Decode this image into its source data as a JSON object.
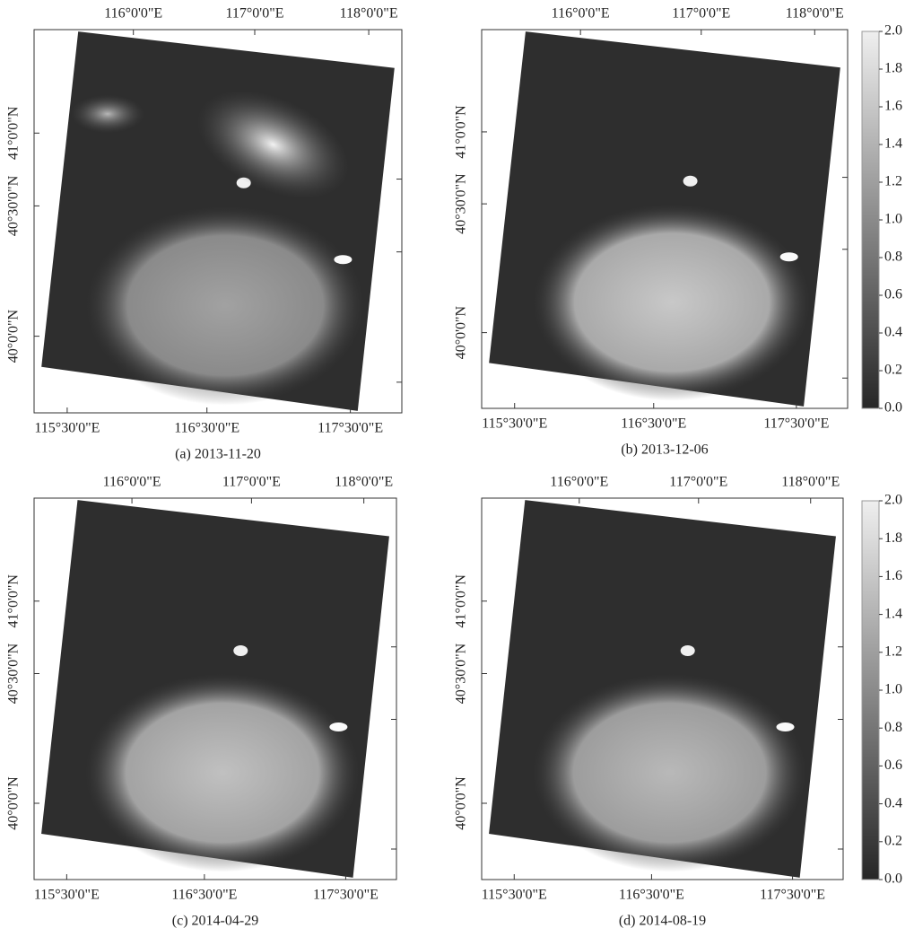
{
  "panels": [
    {
      "top_labels": [
        "116°0'0\"E",
        "117°0'0\"E",
        "118°0'0\"E"
      ],
      "bottom_labels": [
        "115°30'0\"E",
        "116°30'0\"E",
        "117°30'0\"E"
      ],
      "left_labels": [
        "41°0'0\"N",
        "40°30'0\"N",
        "40°0'0\"N"
      ],
      "caption": "(a) 2013-11-20"
    },
    {
      "top_labels": [
        "116°0'0\"E",
        "117°0'0\"E",
        "118°0'0\"E"
      ],
      "bottom_labels": [
        "115°30'0\"E",
        "116°30'0\"E",
        "117°30'0\"E"
      ],
      "left_labels": [
        "41°0'0\"N",
        "40°30'0\"N",
        "40°0'0\"N"
      ],
      "caption": "(b) 2013-12-06"
    },
    {
      "top_labels": [
        "116°0'0\"E",
        "117°0'0\"E",
        "118°0'0\"E"
      ],
      "bottom_labels": [
        "115°30'0\"E",
        "116°30'0\"E",
        "117°30'0\"E"
      ],
      "left_labels": [
        "41°0'0\"N",
        "40°30'0\"N",
        "40°0'0\"N"
      ],
      "caption": "(c) 2014-04-29"
    },
    {
      "top_labels": [
        "116°0'0\"E",
        "117°0'0\"E",
        "118°0'0\"E"
      ],
      "bottom_labels": [
        "115°30'0\"E",
        "116°30'0\"E",
        "117°30'0\"E"
      ],
      "left_labels": [
        "41°0'0\"N",
        "40°30'0\"N",
        "40°0'0\"N"
      ],
      "caption": "(d) 2014-08-19"
    }
  ],
  "colorbars": [
    {
      "ticks": [
        {
          "value": 0,
          "label": "0.0"
        },
        {
          "value": 0.2,
          "label": "0.2"
        },
        {
          "value": 0.4,
          "label": "0.4"
        },
        {
          "value": 0.6,
          "label": "0.6"
        },
        {
          "value": 0.8,
          "label": "0.8"
        },
        {
          "value": 1,
          "label": "1.0"
        },
        {
          "value": 1.2,
          "label": "1.2"
        },
        {
          "value": 1.4,
          "label": "1.4"
        },
        {
          "value": 1.6,
          "label": "1.6"
        },
        {
          "value": 1.8,
          "label": "1.8"
        },
        {
          "value": 2,
          "label": "2.0"
        }
      ]
    },
    {
      "ticks": [
        {
          "value": 0,
          "label": "0.0"
        },
        {
          "value": 0.2,
          "label": "0.2"
        },
        {
          "value": 0.4,
          "label": "0.4"
        },
        {
          "value": 0.6,
          "label": "0.6"
        },
        {
          "value": 0.8,
          "label": "0.8"
        },
        {
          "value": 1,
          "label": "1.0"
        },
        {
          "value": 1.2,
          "label": "1.2"
        },
        {
          "value": 1.4,
          "label": "1.4"
        },
        {
          "value": 1.6,
          "label": "1.6"
        },
        {
          "value": 1.8,
          "label": "1.8"
        },
        {
          "value": 2,
          "label": "2.0"
        }
      ]
    }
  ]
}
